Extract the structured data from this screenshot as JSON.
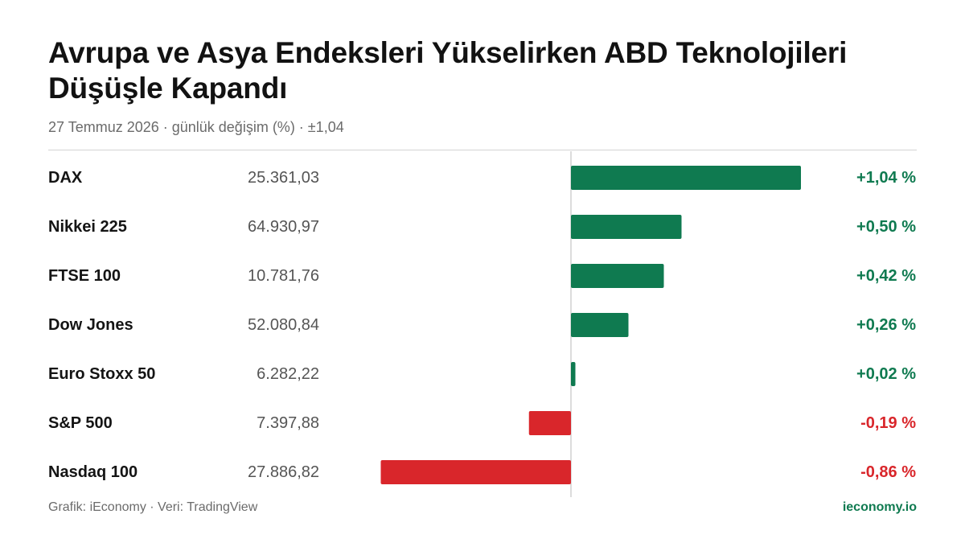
{
  "title": "Avrupa ve Asya Endeksleri Yükselirken ABD Teknolojileri Düşüşle Kapandı",
  "subtitle": "27 Temmuz 2026 · günlük değişim (%) · ±1,04",
  "footer": {
    "credit": "Grafik: iEconomy · Veri: TradingView",
    "brand": "ieconomy.io"
  },
  "colors": {
    "positive": "#0f7a50",
    "negative": "#d9262b",
    "zero_line": "#d0d0d0"
  },
  "chart_data": {
    "type": "bar",
    "orientation": "horizontal",
    "scale_max_abs": 1.04,
    "rows": [
      {
        "name": "DAX",
        "level": "25.361,03",
        "change": 1.04,
        "label": "+1,04 %"
      },
      {
        "name": "Nikkei 225",
        "level": "64.930,97",
        "change": 0.5,
        "label": "+0,50 %"
      },
      {
        "name": "FTSE 100",
        "level": "10.781,76",
        "change": 0.42,
        "label": "+0,42 %"
      },
      {
        "name": "Dow Jones",
        "level": "52.080,84",
        "change": 0.26,
        "label": "+0,26 %"
      },
      {
        "name": "Euro Stoxx 50",
        "level": "6.282,22",
        "change": 0.02,
        "label": "+0,02 %"
      },
      {
        "name": "S&P 500",
        "level": "7.397,88",
        "change": -0.19,
        "label": "-0,19 %"
      },
      {
        "name": "Nasdaq 100",
        "level": "27.886,82",
        "change": -0.86,
        "label": "-0,86 %"
      }
    ]
  }
}
